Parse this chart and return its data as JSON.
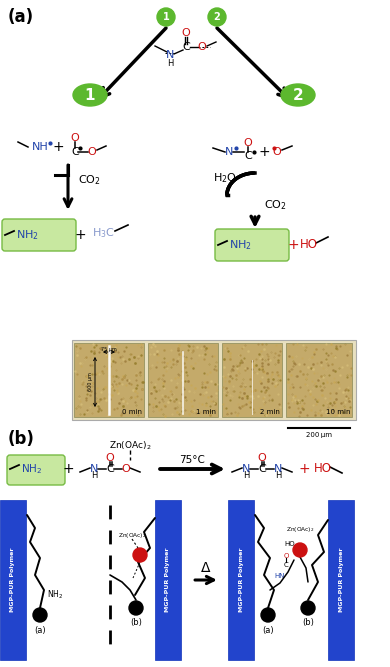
{
  "bg_color": "#ffffff",
  "green_bubble_color": "#5cb82e",
  "green_box_color": "#c8e8a0",
  "blue_label_color": "#2244aa",
  "red_color": "#cc1111",
  "light_blue_color": "#8899cc",
  "figure_width": 3.9,
  "figure_height": 6.67,
  "dpi": 100,
  "img_panel_labels": [
    "0 min",
    "1 min",
    "2 min",
    "10 min"
  ]
}
